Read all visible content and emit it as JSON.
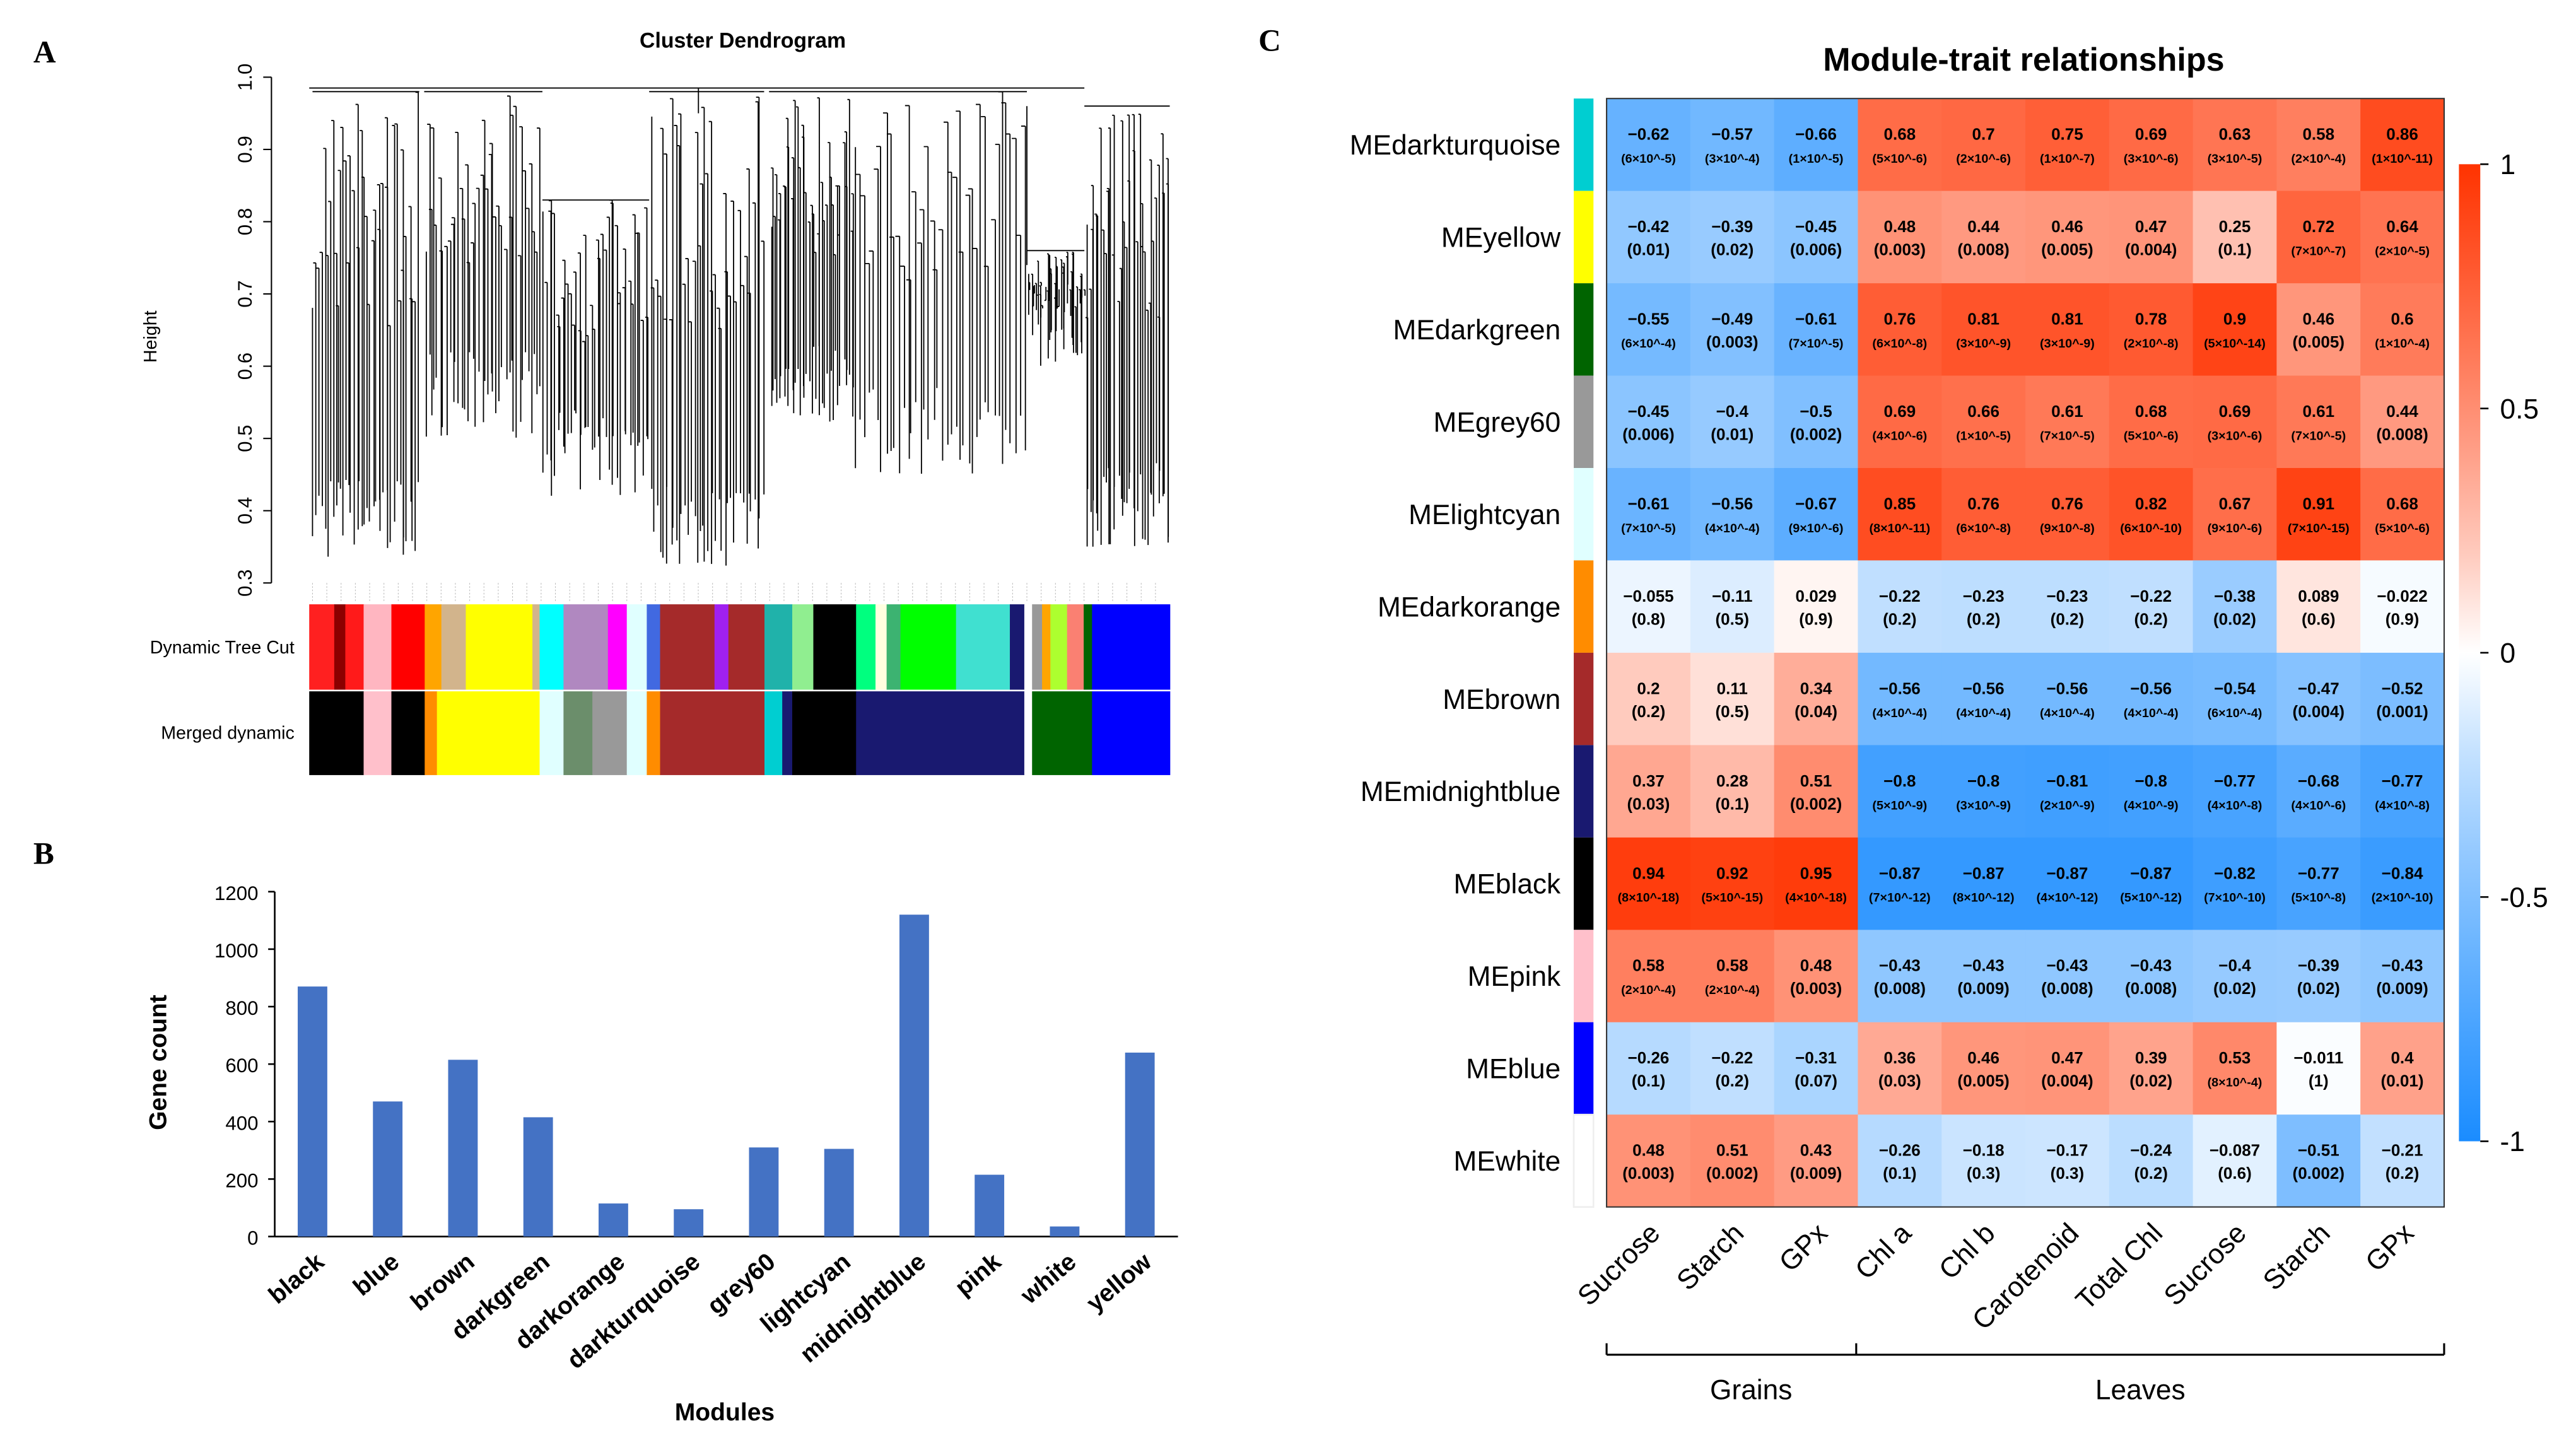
{
  "panel_labels": {
    "a": "A",
    "b": "B",
    "c": "C"
  },
  "dendrogram": {
    "title": "Cluster Dendrogram",
    "ylabel": "Height",
    "yticks": [
      "1.0",
      "0.9",
      "0.8",
      "0.7",
      "0.6",
      "0.5",
      "0.4",
      "0.3"
    ],
    "row_labels": [
      "Dynamic Tree Cut",
      "Merged dynamic"
    ]
  },
  "chart_data": [
    {
      "type": "bar",
      "title": "",
      "categories": [
        "black",
        "blue",
        "brown",
        "darkgreen",
        "darkorange",
        "darkturquoise",
        "grey60",
        "lightcyan",
        "midnightblue",
        "pink",
        "white",
        "yellow"
      ],
      "values": [
        870,
        470,
        615,
        415,
        115,
        95,
        310,
        305,
        1120,
        215,
        35,
        640
      ],
      "xlabel": "Modules",
      "ylabel": "Gene count",
      "ylim": [
        0,
        1200
      ],
      "yticks": [
        "0",
        "200",
        "400",
        "600",
        "800",
        "1000",
        "1200"
      ],
      "bar_color": "#4472c4"
    },
    {
      "type": "heatmap",
      "title": "Module-trait relationships",
      "rows": [
        "MEdarkturquoise",
        "MEyellow",
        "MEdarkgreen",
        "MEgrey60",
        "MElightcyan",
        "MEdarkorange",
        "MEbrown",
        "MEmidnightblue",
        "MEblack",
        "MEpink",
        "MEblue",
        "MEwhite"
      ],
      "row_colors": [
        "#00ced1",
        "#ffff00",
        "#006400",
        "#999999",
        "#e0ffff",
        "#ff8c00",
        "#a52a2a",
        "#191970",
        "#000000",
        "#ffc0cb",
        "#0000ff",
        "#ffffff"
      ],
      "columns": [
        "Sucrose",
        "Starch",
        "GPx",
        "Chl a",
        "Chl b",
        "Carotenoid",
        "Total Chl",
        "Sucrose",
        "Starch",
        "GPx"
      ],
      "groups": [
        {
          "label": "Grains",
          "columns": 3
        },
        {
          "label": "Leaves",
          "columns": 7
        }
      ],
      "values": [
        [
          -0.62,
          -0.57,
          -0.66,
          0.68,
          0.7,
          0.75,
          0.69,
          0.63,
          0.58,
          0.86
        ],
        [
          -0.42,
          -0.39,
          -0.45,
          0.48,
          0.44,
          0.46,
          0.47,
          0.25,
          0.72,
          0.64
        ],
        [
          -0.55,
          -0.49,
          -0.61,
          0.76,
          0.81,
          0.81,
          0.78,
          0.9,
          0.46,
          0.6
        ],
        [
          -0.45,
          -0.4,
          -0.5,
          0.69,
          0.66,
          0.61,
          0.68,
          0.69,
          0.61,
          0.44
        ],
        [
          -0.61,
          -0.56,
          -0.67,
          0.85,
          0.76,
          0.76,
          0.82,
          0.67,
          0.91,
          0.68
        ],
        [
          -0.055,
          -0.11,
          0.029,
          -0.22,
          -0.23,
          -0.23,
          -0.22,
          -0.38,
          0.089,
          -0.022
        ],
        [
          0.2,
          0.11,
          0.34,
          -0.56,
          -0.56,
          -0.56,
          -0.56,
          -0.54,
          -0.47,
          -0.52
        ],
        [
          0.37,
          0.28,
          0.51,
          -0.8,
          -0.8,
          -0.81,
          -0.8,
          -0.77,
          -0.68,
          -0.77
        ],
        [
          0.94,
          0.92,
          0.95,
          -0.87,
          -0.87,
          -0.87,
          -0.87,
          -0.82,
          -0.77,
          -0.84
        ],
        [
          0.58,
          0.58,
          0.48,
          -0.43,
          -0.43,
          -0.43,
          -0.43,
          -0.4,
          -0.39,
          -0.43
        ],
        [
          -0.26,
          -0.22,
          -0.31,
          0.36,
          0.46,
          0.47,
          0.39,
          0.53,
          -0.011,
          0.4
        ],
        [
          0.48,
          0.51,
          0.43,
          -0.26,
          -0.18,
          -0.17,
          -0.24,
          -0.087,
          -0.51,
          -0.21
        ]
      ],
      "pvalues": [
        [
          "6×10^-5",
          "3×10^-4",
          "1×10^-5",
          "5×10^-6",
          "2×10^-6",
          "1×10^-7",
          "3×10^-6",
          "3×10^-5",
          "2×10^-4",
          "1×10^-11"
        ],
        [
          "0.01",
          "0.02",
          "0.006",
          "0.003",
          "0.008",
          "0.005",
          "0.004",
          "0.1",
          "7×10^-7",
          "2×10^-5"
        ],
        [
          "6×10^-4",
          "0.003",
          "7×10^-5",
          "6×10^-8",
          "3×10^-9",
          "3×10^-9",
          "2×10^-8",
          "5×10^-14",
          "0.005",
          "1×10^-4"
        ],
        [
          "0.006",
          "0.01",
          "0.002",
          "4×10^-6",
          "1×10^-5",
          "7×10^-5",
          "5×10^-6",
          "3×10^-6",
          "7×10^-5",
          "0.008"
        ],
        [
          "7×10^-5",
          "4×10^-4",
          "9×10^-6",
          "8×10^-11",
          "6×10^-8",
          "9×10^-8",
          "6×10^-10",
          "9×10^-6",
          "7×10^-15",
          "5×10^-6"
        ],
        [
          "0.8",
          "0.5",
          "0.9",
          "0.2",
          "0.2",
          "0.2",
          "0.2",
          "0.02",
          "0.6",
          "0.9"
        ],
        [
          "0.2",
          "0.5",
          "0.04",
          "4×10^-4",
          "4×10^-4",
          "4×10^-4",
          "4×10^-4",
          "6×10^-4",
          "0.004",
          "0.001"
        ],
        [
          "0.03",
          "0.1",
          "0.002",
          "5×10^-9",
          "3×10^-9",
          "2×10^-9",
          "4×10^-9",
          "4×10^-8",
          "4×10^-6",
          "4×10^-8"
        ],
        [
          "8×10^-18",
          "5×10^-15",
          "4×10^-18",
          "7×10^-12",
          "8×10^-12",
          "4×10^-12",
          "5×10^-12",
          "7×10^-10",
          "5×10^-8",
          "2×10^-10"
        ],
        [
          "2×10^-4",
          "2×10^-4",
          "0.003",
          "0.008",
          "0.009",
          "0.008",
          "0.008",
          "0.02",
          "0.02",
          "0.009"
        ],
        [
          "0.1",
          "0.2",
          "0.07",
          "0.03",
          "0.005",
          "0.004",
          "0.02",
          "8×10^-4",
          "1",
          "0.01"
        ],
        [
          "0.003",
          "0.002",
          "0.009",
          "0.1",
          "0.3",
          "0.3",
          "0.2",
          "0.6",
          "0.002",
          "0.2"
        ]
      ],
      "range": [
        -1,
        1
      ],
      "colorbar_ticks": [
        "1",
        "0.5",
        "0",
        "-0.5",
        "-1"
      ],
      "colors": {
        "low": "#1a8cff",
        "mid": "#ffffff",
        "high": "#ff3300"
      }
    }
  ]
}
